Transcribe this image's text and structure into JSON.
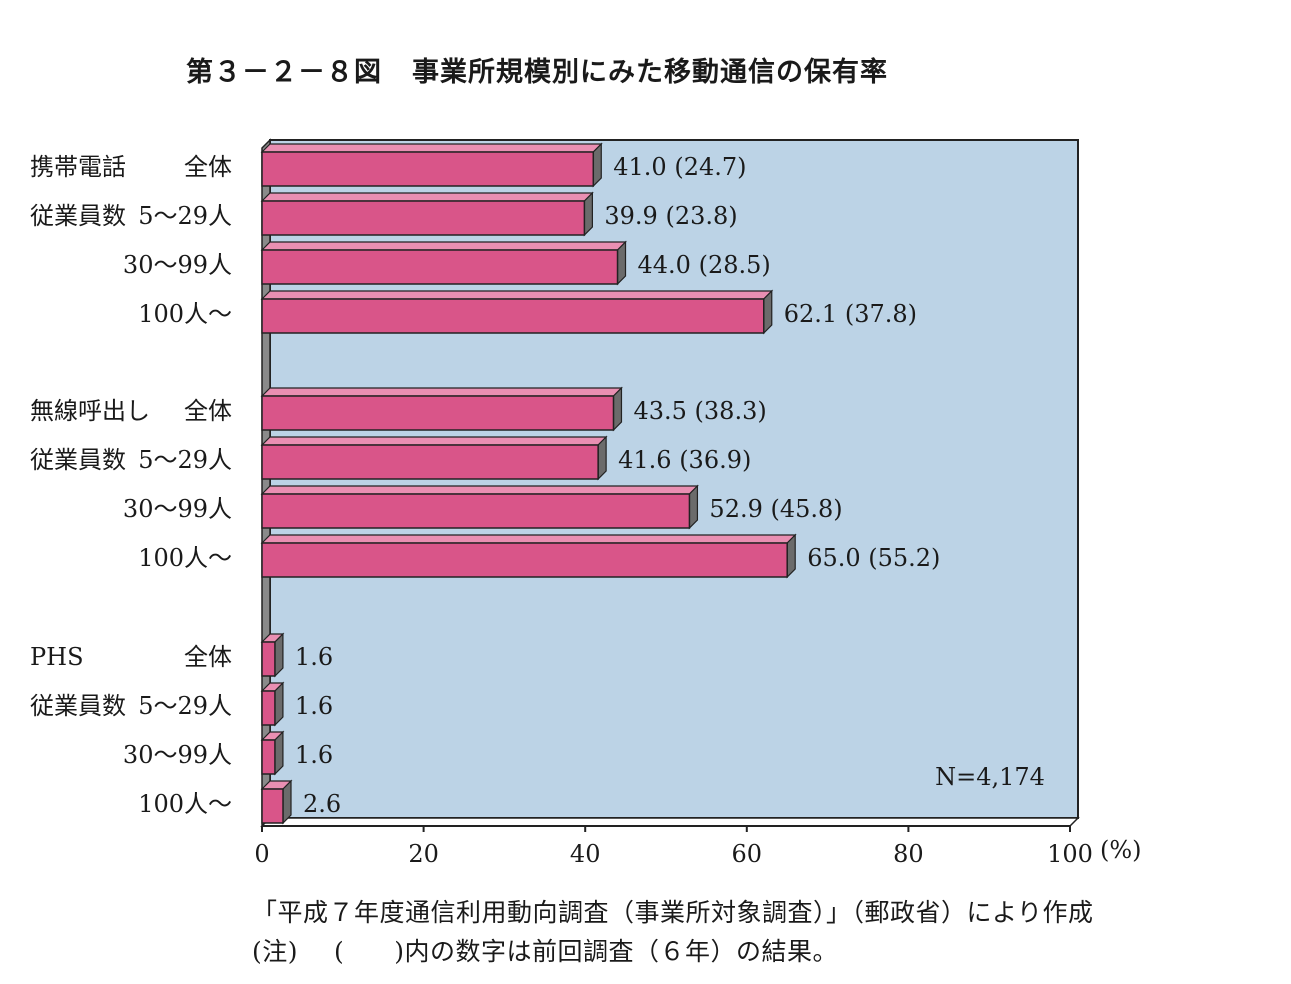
{
  "title": {
    "number": "第３－２－８図",
    "text": "事業所規模別にみた移動通信の保有率"
  },
  "footnotes": {
    "source": "「平成７年度通信利用動向調査（事業所対象調査）」（郵政省）により作成",
    "note_label": "(注)",
    "note_paren_open": "(",
    "note_paren_close": ")",
    "note_text": "内の数字は前回調査（６年）の結果。"
  },
  "colors": {
    "bar": "#d95589",
    "bar_side": "#6b6b6b",
    "plot_bg": "#bcd3e6",
    "wall": "#8a8a8a"
  },
  "chart_data": {
    "type": "bar",
    "orientation": "horizontal",
    "xlim": [
      0,
      100
    ],
    "xticks": [
      "0",
      "20",
      "40",
      "60",
      "80",
      "100"
    ],
    "xunit": "(%)",
    "annotation": "N=4,174",
    "groups": [
      {
        "name": "携帯電話",
        "rows": [
          {
            "group_label": "携帯電話",
            "label": "全体",
            "value": 41.0,
            "prev": 24.7,
            "value_label": "41.0 (24.7)"
          },
          {
            "group_label": "従業員数",
            "label": "5～29人",
            "value": 39.9,
            "prev": 23.8,
            "value_label": "39.9 (23.8)"
          },
          {
            "group_label": "",
            "label": "30～99人",
            "value": 44.0,
            "prev": 28.5,
            "value_label": "44.0 (28.5)"
          },
          {
            "group_label": "",
            "label": "100人～",
            "value": 62.1,
            "prev": 37.8,
            "value_label": "62.1 (37.8)"
          }
        ]
      },
      {
        "name": "無線呼出し",
        "rows": [
          {
            "group_label": "無線呼出し",
            "label": "全体",
            "value": 43.5,
            "prev": 38.3,
            "value_label": "43.5 (38.3)"
          },
          {
            "group_label": "従業員数",
            "label": "5～29人",
            "value": 41.6,
            "prev": 36.9,
            "value_label": "41.6 (36.9)"
          },
          {
            "group_label": "",
            "label": "30～99人",
            "value": 52.9,
            "prev": 45.8,
            "value_label": "52.9 (45.8)"
          },
          {
            "group_label": "",
            "label": "100人～",
            "value": 65.0,
            "prev": 55.2,
            "value_label": "65.0 (55.2)"
          }
        ]
      },
      {
        "name": "PHS",
        "rows": [
          {
            "group_label": "PHS",
            "label": "全体",
            "value": 1.6,
            "value_label": "1.6"
          },
          {
            "group_label": "従業員数",
            "label": "5～29人",
            "value": 1.6,
            "value_label": "1.6"
          },
          {
            "group_label": "",
            "label": "30～99人",
            "value": 1.6,
            "value_label": "1.6"
          },
          {
            "group_label": "",
            "label": "100人～",
            "value": 2.6,
            "value_label": "2.6"
          }
        ]
      }
    ]
  }
}
